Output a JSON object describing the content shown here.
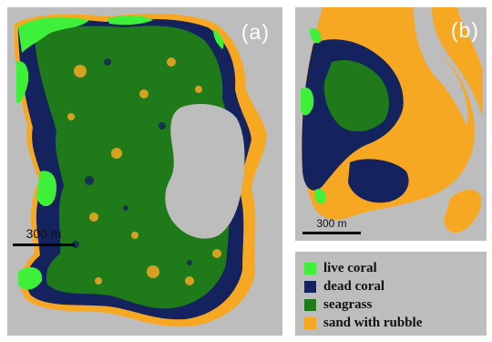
{
  "panels": [
    {
      "label": "(a)",
      "scale_text": "300 m"
    },
    {
      "label": "(b)",
      "scale_text": "300 m"
    }
  ],
  "legend": [
    {
      "label": "live coral",
      "color": "#3ef03a"
    },
    {
      "label": "dead coral",
      "color": "#14235e"
    },
    {
      "label": "seagrass",
      "color": "#1f7a1a"
    },
    {
      "label": "sand with rubble",
      "color": "#f7a823"
    }
  ],
  "background_color": "#bdbdbd"
}
